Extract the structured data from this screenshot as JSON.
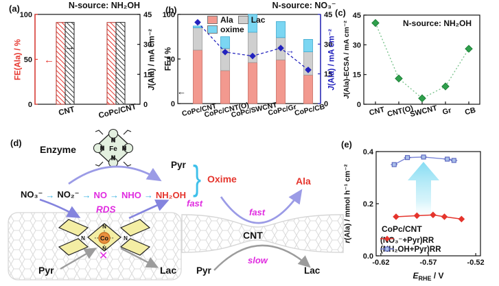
{
  "colors": {
    "red": "#E5342C",
    "dark": "#1A1A1A",
    "pink": "#F2998F",
    "pink_edge": "#C96A5F",
    "gray_bar": "#CFCFCF",
    "gray_edge": "#9C9C9C",
    "cyan_bar": "#7BD6F2",
    "cyan_edge": "#3FA8CE",
    "blue": "#2222BE",
    "green": "#2FA04C",
    "green_line": "#7CC48E",
    "magenta": "#E02BE0",
    "purple": "#8484DE",
    "purple_light": "#9B9BE6",
    "arrow_gray": "#9C9C9C",
    "cyan_text": "#3FC0EA",
    "cyan_arrow": "#35B2E2",
    "yellow": "#F4EEA4",
    "co_fill": "#EA9140",
    "co_edge": "#C76F1F",
    "e_blue_line": "#7B86D8",
    "e_blue_fill": "#AABFE9",
    "e_blue_edge": "#4A55B8",
    "big_arrow": "#86DDF2",
    "lattice": "#DCDCDC"
  },
  "icons": {
    "arrow_left": "←",
    "arrow_right": "→",
    "path_arrow": "→",
    "brace": "}",
    "cross": "✕"
  },
  "panels": {
    "a": {
      "label": "(a)"
    },
    "b": {
      "label": "(b)"
    },
    "c": {
      "label": "(c)"
    },
    "e": {
      "label": "(e)"
    },
    "d": {
      "label": "(d)",
      "enzyme": "Enzyme",
      "fe": "Fe",
      "n": "N",
      "co": "Co",
      "species": [
        "NO₃⁻",
        "NO₂⁻",
        "NO",
        "NHO",
        "NH₂OH"
      ],
      "pyr_top": "Pyr",
      "oxime": "Oxime",
      "rds": "RDS",
      "fast_left": "fast",
      "fast_right": "fast",
      "slow": "slow",
      "pyr_left": "Pyr",
      "lac_left": "Lac",
      "pyr_bottom": "Pyr",
      "lac_bottom": "Lac",
      "cnt": "CNT",
      "ala": "Ala"
    }
  },
  "chart_data": [
    {
      "id": "a",
      "type": "bar",
      "title": "N-source: NH₂OH",
      "categories": [
        "CNT",
        "CoPc/CNT"
      ],
      "series": [
        {
          "name": "FE(Ala)",
          "axis": "left",
          "values": [
            91,
            91
          ]
        },
        {
          "name": "J(Ala)",
          "axis": "right",
          "values": [
            41,
            41
          ]
        }
      ],
      "ylabel_left": "FE(Ala) / %",
      "ylabel_right_parts": {
        "it": "J",
        "rest": "(Ala) / mA cm⁻²"
      },
      "ylim_left": [
        0,
        100
      ],
      "ylim_right": [
        0,
        45
      ],
      "yticks_left": [
        0,
        50,
        100
      ],
      "yticks_right": [
        0,
        15,
        30,
        45
      ]
    },
    {
      "id": "b",
      "type": "stacked-bar+line",
      "title": "N-source: NO₃⁻",
      "categories": [
        "CoPc/CNT",
        "CoPc/CNT(O)",
        "CoPc/SWCNT",
        "CoPc/Gr",
        "CoPc/CB"
      ],
      "series": [
        {
          "name": "Ala",
          "values": [
            60,
            37,
            46,
            49,
            32
          ]
        },
        {
          "name": "Lac",
          "values": [
            25,
            25,
            34,
            25,
            26
          ]
        },
        {
          "name": "oxime",
          "values": [
            2,
            13,
            20,
            18,
            14
          ]
        }
      ],
      "line": {
        "name": "J(Ala)",
        "axis": "right",
        "values": [
          41,
          26,
          24,
          28,
          17
        ]
      },
      "ylabel_left": "FE / %",
      "ylabel_right_parts": {
        "it": "J",
        "rest": "(Ala) / mA cm⁻²"
      },
      "ylim_left": [
        0,
        100
      ],
      "ylim_right": [
        0,
        45
      ],
      "yticks_left": [
        0,
        50,
        100
      ],
      "yticks_right": [
        0,
        15,
        30,
        45
      ]
    },
    {
      "id": "c",
      "type": "scatter",
      "title": "N-source: NH₂OH",
      "categories": [
        "CNT",
        "CNT(O)",
        "SWCNT",
        "Gr",
        "CB"
      ],
      "values": [
        41,
        13,
        3,
        9,
        28
      ],
      "ylabel_parts": {
        "it": "J",
        "rest": "(Ala)-ECSA / mA cm⁻²"
      },
      "ylim": [
        0,
        45
      ],
      "yticks": [
        0,
        15,
        30,
        45
      ]
    },
    {
      "id": "e",
      "type": "line",
      "legend_title": "CoPc/CNT",
      "series": [
        {
          "name": "(NO₃⁻+Pyr)RR",
          "x": [
            -0.604,
            -0.582,
            -0.565,
            -0.553,
            -0.535
          ],
          "y": [
            0.15,
            0.154,
            0.157,
            0.15,
            0.141
          ]
        },
        {
          "name": "(NH₂OH+Pyr)RR",
          "x": [
            -0.606,
            -0.592,
            -0.575,
            -0.55,
            -0.543
          ],
          "y": [
            0.35,
            0.377,
            0.379,
            0.371,
            0.366
          ]
        }
      ],
      "ylabel_parts": {
        "it": "r",
        "rest": "(Ala) / mmol h⁻¹ cm⁻²"
      },
      "xlabel_parts": {
        "it": "E",
        "sub": "RHE",
        "rest": " / V"
      },
      "xlim": [
        -0.625,
        -0.515
      ],
      "ylim": [
        0,
        0.4
      ],
      "xticks": [
        -0.62,
        -0.57,
        -0.52
      ],
      "xtick_labels": [
        "-0.62",
        "-0.57",
        "-0.52"
      ],
      "yticks": [
        0,
        0.2,
        0.4
      ],
      "ytick_labels": [
        "0.0",
        "0.2",
        "0.4"
      ]
    }
  ]
}
